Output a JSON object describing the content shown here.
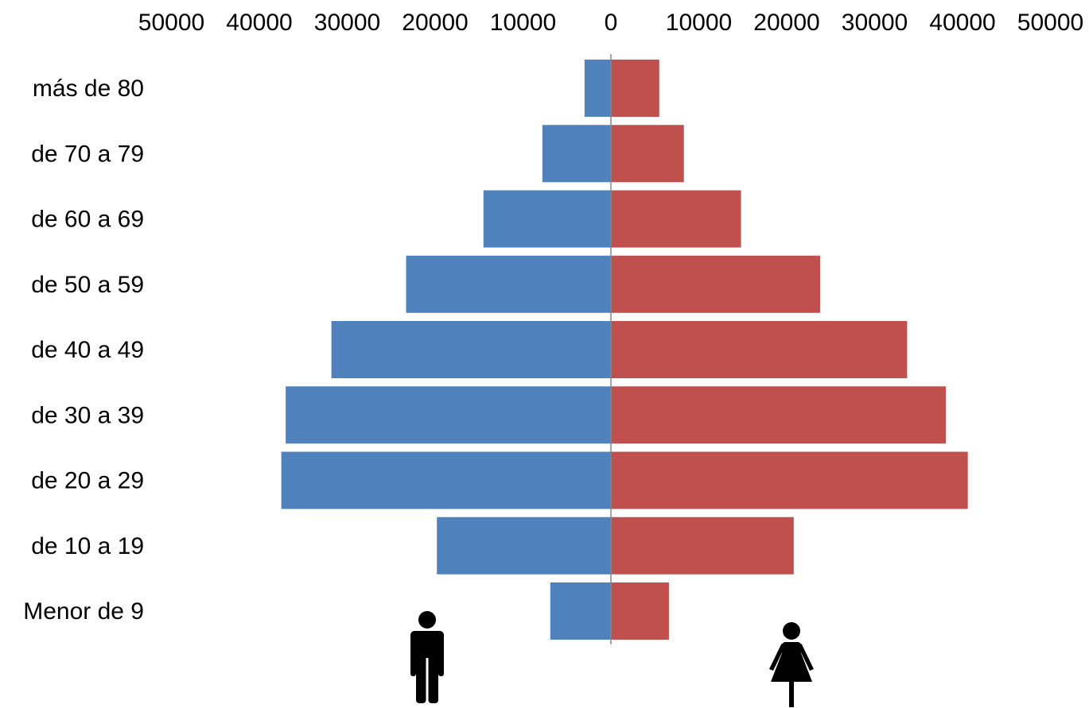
{
  "chart_data": {
    "type": "bar",
    "orientation": "horizontal",
    "layout": "population-pyramid",
    "categories": [
      "más de 80",
      "de 70 a 79",
      "de 60 a 69",
      "de 50 a 59",
      "de 40 a 49",
      "de 30 a 39",
      "de 20 a 29",
      "de 10 a 19",
      "Menor de 9"
    ],
    "series": [
      {
        "key": "male",
        "side": "left",
        "color": "#4f81bd",
        "icon": "man-icon",
        "values": [
          3000,
          7800,
          14500,
          23300,
          31800,
          37000,
          37500,
          19800,
          6900
        ]
      },
      {
        "key": "female",
        "side": "right",
        "color": "#c0504d",
        "icon": "woman-icon",
        "values": [
          5500,
          8300,
          14800,
          23800,
          33700,
          38100,
          40600,
          20800,
          6600
        ]
      }
    ],
    "x_ticks": [
      "50000",
      "40000",
      "30000",
      "20000",
      "10000",
      "0",
      "10000",
      "20000",
      "30000",
      "40000",
      "50000"
    ],
    "x_tick_values": [
      -50000,
      -40000,
      -30000,
      -20000,
      -10000,
      0,
      10000,
      20000,
      30000,
      40000,
      50000
    ],
    "xlim": [
      -50000,
      50000
    ],
    "axis_position": "top",
    "legend": "icons-below-bars",
    "grid": false,
    "title": "",
    "xlabel": "",
    "ylabel": ""
  }
}
